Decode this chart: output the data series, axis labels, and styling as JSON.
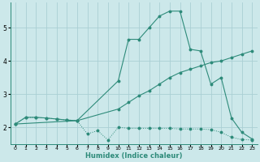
{
  "bg_color": "#cce8ea",
  "grid_color": "#aacfd4",
  "line_color": "#2e8b7a",
  "xlabel": "Humidex (Indice chaleur)",
  "xlim": [
    -0.5,
    23.5
  ],
  "ylim": [
    1.5,
    5.75
  ],
  "xticks": [
    0,
    1,
    2,
    3,
    4,
    5,
    6,
    7,
    8,
    9,
    10,
    11,
    12,
    13,
    14,
    15,
    16,
    17,
    18,
    19,
    20,
    21,
    22,
    23
  ],
  "yticks": [
    2,
    3,
    4,
    5
  ],
  "line_upper_x": [
    0,
    1,
    2,
    3,
    4,
    5,
    6,
    10,
    11,
    12,
    13,
    14,
    15,
    16,
    17,
    18,
    19,
    20,
    21,
    22,
    23
  ],
  "line_upper_y": [
    2.1,
    2.3,
    2.3,
    2.28,
    2.25,
    2.22,
    2.2,
    3.4,
    4.65,
    4.65,
    5.0,
    5.35,
    5.5,
    5.5,
    4.35,
    4.3,
    3.3,
    3.5,
    2.28,
    1.85,
    1.65
  ],
  "line_lower_x": [
    0,
    1,
    2,
    3,
    4,
    5,
    6,
    7,
    8,
    9,
    10,
    11,
    12,
    13,
    14,
    15,
    16,
    17,
    18,
    19,
    20,
    21,
    22,
    23
  ],
  "line_lower_y": [
    2.1,
    2.3,
    2.3,
    2.28,
    2.25,
    2.22,
    2.2,
    1.8,
    1.9,
    1.62,
    2.0,
    1.97,
    1.97,
    1.97,
    1.97,
    1.97,
    1.95,
    1.95,
    1.95,
    1.93,
    1.85,
    1.7,
    1.63,
    1.62
  ],
  "line_diag_x": [
    0,
    6,
    10,
    11,
    12,
    13,
    14,
    15,
    16,
    17,
    18,
    19,
    20,
    21,
    22,
    23
  ],
  "line_diag_y": [
    2.1,
    2.2,
    2.55,
    2.75,
    2.95,
    3.1,
    3.3,
    3.5,
    3.65,
    3.75,
    3.85,
    3.95,
    4.0,
    4.1,
    4.2,
    4.3
  ]
}
